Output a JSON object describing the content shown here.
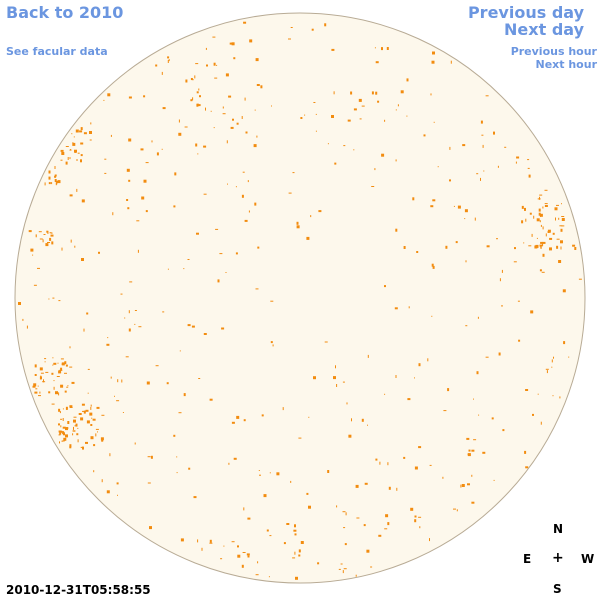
{
  "nav": {
    "back_label": "Back to 2010",
    "facular_label": "See facular data",
    "prev_day_label": "Previous day",
    "next_day_label": "Next day",
    "prev_hour_label": "Previous hour",
    "next_hour_label": "Next hour"
  },
  "timestamp": "2010-12-31T05:58:55",
  "compass": {
    "north": "N",
    "south": "S",
    "east": "E",
    "west": "W",
    "center": "+"
  },
  "colors": {
    "disk_fill": "#fdf8ec",
    "disk_stroke": "#b8ab95",
    "facula": "#f28c0f",
    "link": "#6b96e0"
  }
}
